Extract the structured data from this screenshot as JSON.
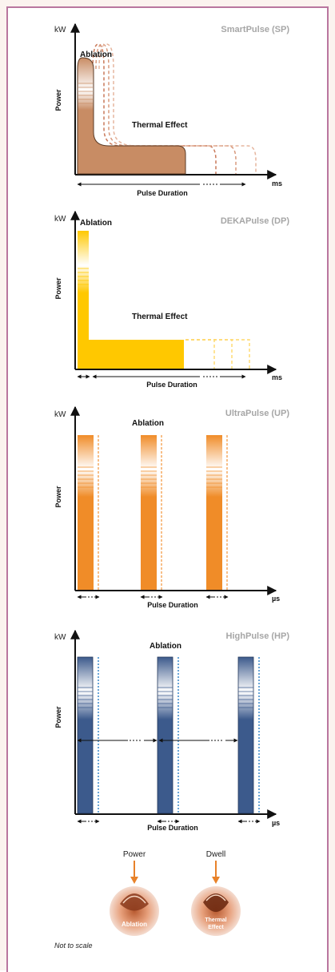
{
  "colors": {
    "smart": "#c88c64",
    "smart_dash": "#c9795a",
    "deka": "#ffc800",
    "deka_dash": "#ffe27a",
    "ultra": "#f08c28",
    "ultra_dash": "#f4a456",
    "high": "#3c5a8c",
    "high_dash": "#2a7fc6",
    "arrow": "#e8822a",
    "border": "#b9769f"
  },
  "panels": [
    {
      "title": "SmartPulse (SP)",
      "y_unit": "kW",
      "y_label": "Power",
      "x_unit": "ms",
      "x_label": "Pulse Duration",
      "ablation": "Ablation",
      "thermal": "Thermal Effect"
    },
    {
      "title": "DEKAPulse (DP)",
      "y_unit": "kW",
      "y_label": "Power",
      "x_unit": "ms",
      "x_label": "Pulse Duration",
      "ablation": "Ablation",
      "thermal": "Thermal Effect"
    },
    {
      "title": "UltraPulse (UP)",
      "y_unit": "kW",
      "y_label": "Power",
      "x_unit": "µs",
      "x_label": "Pulse Duration",
      "ablation": "Ablation"
    },
    {
      "title": "HighPulse (HP)",
      "y_unit": "kW",
      "y_label": "Power",
      "x_unit": "µs",
      "x_label": "Pulse Duration",
      "ablation": "Ablation"
    }
  ],
  "legend": {
    "power_label": "Power",
    "dwell_label": "Dwell",
    "left_circle_text": "Ablation",
    "right_circle_line1": "Thermal",
    "right_circle_line2": "Effect"
  },
  "note": "Not to scale"
}
